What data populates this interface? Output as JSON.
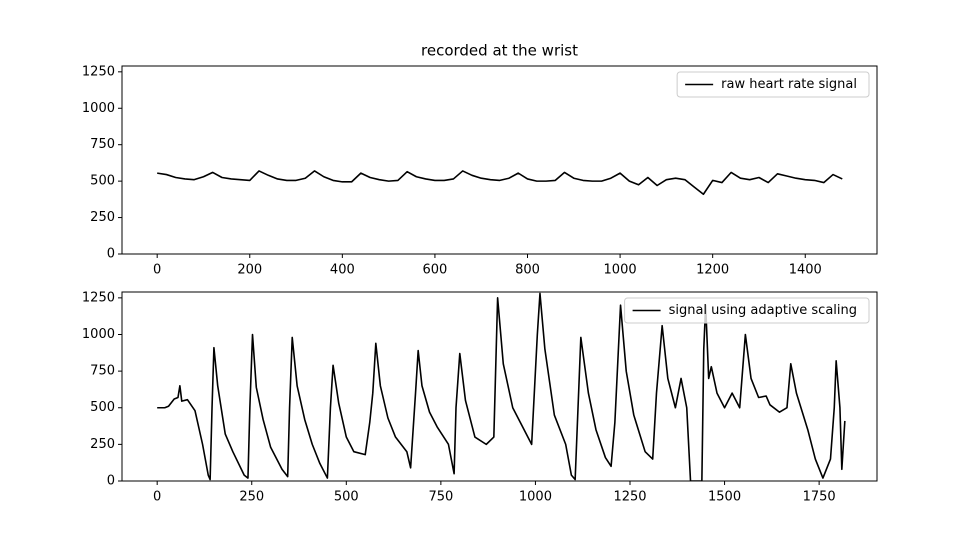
{
  "chart_data": [
    {
      "type": "line",
      "title": "recorded at the wrist",
      "x": [
        0,
        20,
        40,
        60,
        80,
        100,
        120,
        140,
        160,
        180,
        200,
        220,
        240,
        260,
        280,
        300,
        320,
        340,
        360,
        380,
        400,
        420,
        440,
        460,
        480,
        500,
        520,
        540,
        560,
        580,
        600,
        620,
        640,
        660,
        680,
        700,
        720,
        740,
        760,
        780,
        800,
        820,
        840,
        860,
        880,
        900,
        920,
        940,
        960,
        980,
        1000,
        1020,
        1040,
        1060,
        1080,
        1100,
        1120,
        1140,
        1160,
        1180,
        1200,
        1220,
        1240,
        1260,
        1280,
        1300,
        1320,
        1340,
        1360,
        1380,
        1400,
        1420,
        1440,
        1460,
        1480
      ],
      "series": [
        {
          "name": "raw heart rate signal",
          "color": "#000000",
          "values": [
            555,
            545,
            525,
            515,
            510,
            530,
            560,
            525,
            515,
            510,
            505,
            570,
            540,
            515,
            505,
            505,
            520,
            570,
            530,
            505,
            495,
            495,
            555,
            525,
            510,
            500,
            505,
            565,
            530,
            515,
            505,
            505,
            515,
            570,
            540,
            520,
            510,
            505,
            520,
            555,
            515,
            500,
            500,
            505,
            560,
            520,
            505,
            500,
            500,
            520,
            555,
            500,
            475,
            525,
            470,
            510,
            520,
            510,
            460,
            410,
            505,
            490,
            560,
            520,
            510,
            525,
            490,
            550,
            535,
            520,
            510,
            505,
            490,
            545,
            515
          ]
        }
      ],
      "xlim": [
        -76,
        1555
      ],
      "ylim": [
        0,
        1290
      ],
      "xticks": [
        0,
        200,
        400,
        600,
        800,
        1000,
        1200,
        1400
      ],
      "yticks": [
        0,
        250,
        500,
        750,
        1000,
        1250
      ],
      "legend": "upper right"
    },
    {
      "type": "line",
      "x": [
        0,
        20,
        30,
        45,
        55,
        60,
        65,
        80,
        100,
        120,
        135,
        140,
        145,
        150,
        160,
        180,
        200,
        230,
        240,
        245,
        252,
        262,
        280,
        300,
        330,
        345,
        350,
        357,
        370,
        390,
        410,
        430,
        450,
        458,
        465,
        480,
        500,
        520,
        550,
        562,
        570,
        578,
        590,
        610,
        630,
        660,
        670,
        683,
        690,
        700,
        720,
        740,
        770,
        785,
        790,
        800,
        815,
        840,
        870,
        890,
        900,
        915,
        940,
        960,
        990,
        1005,
        1012,
        1025,
        1050,
        1080,
        1095,
        1105,
        1120,
        1140,
        1160,
        1185,
        1200,
        1210,
        1225,
        1240,
        1260,
        1290,
        1310,
        1320,
        1335,
        1350,
        1370,
        1385,
        1400,
        1410,
        1440,
        1445,
        1450,
        1458,
        1465,
        1480,
        1500,
        1520,
        1540,
        1555,
        1570,
        1590,
        1610,
        1620,
        1645,
        1665,
        1675,
        1690,
        1720,
        1740,
        1760,
        1780,
        1790,
        1795,
        1805,
        1810,
        1818
      ],
      "series": [
        {
          "name": "signal using adaptive scaling",
          "color": "#000000",
          "values": [
            500,
            500,
            510,
            560,
            570,
            650,
            545,
            555,
            480,
            250,
            40,
            10,
            500,
            910,
            650,
            320,
            200,
            40,
            20,
            500,
            1000,
            640,
            420,
            230,
            80,
            30,
            500,
            980,
            650,
            420,
            250,
            120,
            20,
            500,
            790,
            530,
            300,
            200,
            180,
            400,
            600,
            940,
            650,
            430,
            300,
            200,
            90,
            600,
            890,
            650,
            470,
            370,
            250,
            50,
            500,
            870,
            550,
            300,
            250,
            300,
            1250,
            800,
            500,
            400,
            250,
            1000,
            1280,
            900,
            450,
            250,
            40,
            10,
            980,
            600,
            350,
            160,
            100,
            400,
            1200,
            750,
            450,
            200,
            150,
            600,
            1060,
            700,
            500,
            700,
            500,
            0,
            0,
            900,
            1200,
            700,
            780,
            600,
            500,
            600,
            500,
            1000,
            700,
            570,
            580,
            520,
            470,
            500,
            800,
            600,
            350,
            150,
            20,
            150,
            500,
            820,
            500,
            80,
            410
          ]
        }
      ],
      "xlim": [
        -93,
        1903
      ],
      "ylim": [
        0,
        1290
      ],
      "xticks": [
        0,
        250,
        500,
        750,
        1000,
        1250,
        1500,
        1750
      ],
      "yticks": [
        0,
        250,
        500,
        750,
        1000,
        1250
      ],
      "legend": "upper right"
    }
  ]
}
